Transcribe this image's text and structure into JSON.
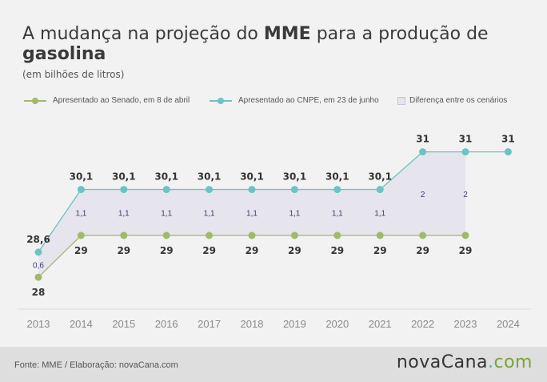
{
  "header": {
    "title_part1": "A mudança na projeção do ",
    "title_bold1": "MME",
    "title_part2": " para a produção de ",
    "title_bold2": "gasolina",
    "subtitle": "(em bilhões de litros)"
  },
  "legend": [
    {
      "label": "Apresentado ao Senado, em 8 de abril",
      "color": "#a2b96b"
    },
    {
      "label": "Apresentado ao CNPE, em 23 de junho",
      "color": "#6cc3c3"
    },
    {
      "label": "Diferença entre os cenários",
      "color": "#e6e4ec"
    }
  ],
  "chart_data": {
    "type": "line",
    "title": "A mudança na projeção do MME para a produção de gasolina",
    "subtitle": "(em bilhões de litros)",
    "categories": [
      "2013",
      "2014",
      "2015",
      "2016",
      "2017",
      "2018",
      "2019",
      "2020",
      "2021",
      "2022",
      "2023",
      "2024"
    ],
    "series": [
      {
        "name": "Apresentado ao Senado, em 8 de abril",
        "color": "#a2b96b",
        "values": [
          28,
          29,
          29,
          29,
          29,
          29,
          29,
          29,
          29,
          29,
          29,
          null
        ],
        "labels": [
          "28",
          "29",
          "29",
          "29",
          "29",
          "29",
          "29",
          "29",
          "29",
          "29",
          "29",
          ""
        ]
      },
      {
        "name": "Apresentado ao CNPE, em 23 de junho",
        "color": "#6cc3c3",
        "values": [
          28.6,
          30.1,
          30.1,
          30.1,
          30.1,
          30.1,
          30.1,
          30.1,
          30.1,
          31,
          31,
          31
        ],
        "labels": [
          "28,6",
          "30,1",
          "30,1",
          "30,1",
          "30,1",
          "30,1",
          "30,1",
          "30,1",
          "30,1",
          "31",
          "31",
          "31"
        ]
      }
    ],
    "difference": {
      "name": "Diferença entre os cenários",
      "labels": [
        "0,6",
        "1,1",
        "1,1",
        "1,1",
        "1,1",
        "1,1",
        "1,1",
        "1,1",
        "1,1",
        "2",
        "2",
        ""
      ]
    },
    "ylim": [
      27,
      32
    ],
    "grid": false
  },
  "footer": {
    "source": "Fonte: MME / Elaboração: novaCana.com",
    "logo_main": "novaCana",
    "logo_dot": ".",
    "logo_com": "com"
  }
}
